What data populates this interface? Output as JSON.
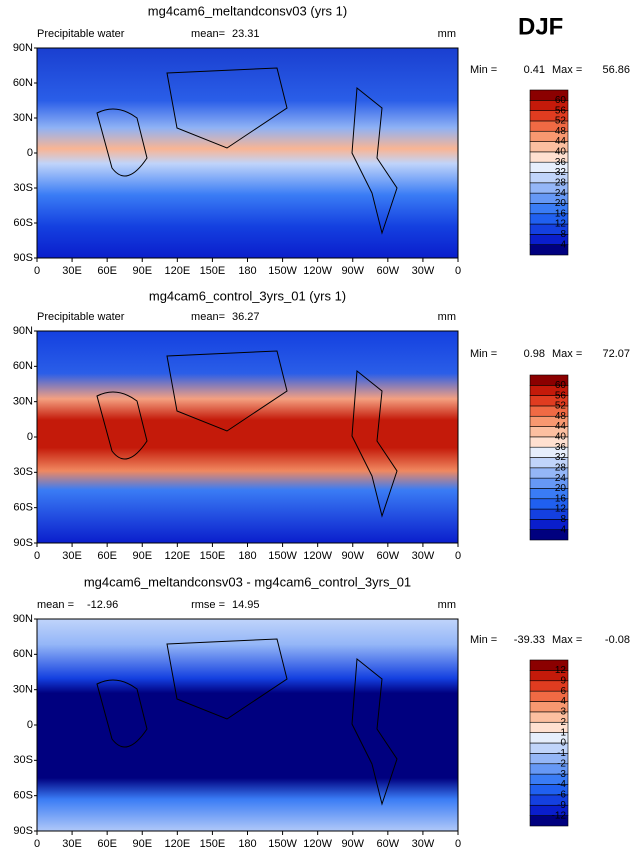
{
  "header": {
    "season": "DJF"
  },
  "lon_labels": [
    "0",
    "30E",
    "60E",
    "90E",
    "120E",
    "150E",
    "180",
    "150W",
    "120W",
    "90W",
    "60W",
    "30W",
    "0"
  ],
  "lat_labels": [
    "90N",
    "60N",
    "30N",
    "0",
    "30S",
    "60S",
    "90S"
  ],
  "panels": [
    {
      "title": "mg4cam6_meltandconsv03 (yrs 1)",
      "variable": "Precipitable water",
      "stat_label": "mean=",
      "stat": 23.31,
      "units": "mm",
      "min_label": "Min =",
      "min": 0.41,
      "max_label": "Max =",
      "max": 56.86,
      "levels": [
        4,
        8,
        12,
        16,
        20,
        24,
        28,
        32,
        36,
        40,
        44,
        48,
        52,
        56,
        60
      ]
    },
    {
      "title": "mg4cam6_control_3yrs_01 (yrs 1)",
      "variable": "Precipitable water",
      "stat_label": "mean=",
      "stat": 36.27,
      "units": "mm",
      "min_label": "Min =",
      "min": 0.98,
      "max_label": "Max =",
      "max": 72.07,
      "levels": [
        4,
        8,
        12,
        16,
        20,
        24,
        28,
        32,
        36,
        40,
        44,
        48,
        52,
        56,
        60
      ]
    },
    {
      "title": "mg4cam6_meltandconsv03 - mg4cam6_control_3yrs_01",
      "variable": "mean =",
      "stat_label": "rmse =",
      "stat": 14.95,
      "mean": -12.96,
      "units": "mm",
      "min_label": "Min =",
      "min": -39.33,
      "max_label": "Max =",
      "max": -0.08,
      "levels": [
        -12,
        -9,
        -6,
        -4,
        -3,
        -2,
        -1,
        0,
        1,
        2,
        3,
        4,
        6,
        9,
        12
      ]
    }
  ]
}
